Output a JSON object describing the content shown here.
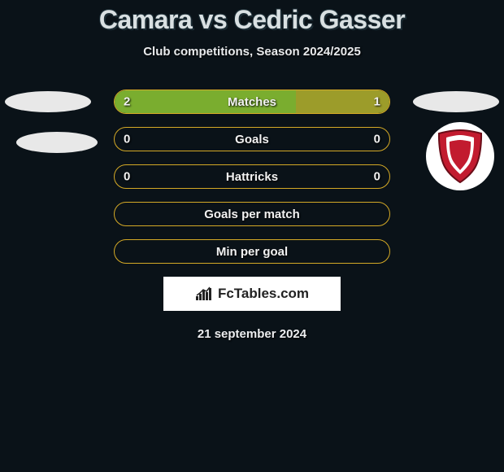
{
  "title": "Camara vs Cedric Gasser",
  "subtitle": "Club competitions, Season 2024/2025",
  "date": "21 september 2024",
  "branding_text": "FcTables.com",
  "colors": {
    "background": "#0a1218",
    "bar_border": "#d4a926",
    "fill_green": "#7aad2f",
    "fill_olive": "#9c9c2a",
    "text": "#f2f2f2",
    "oval_bg": "#e8e8e8",
    "badge_bg": "#ffffff",
    "shield_red": "#c21b2f"
  },
  "rows": [
    {
      "label": "Matches",
      "left_val": "2",
      "right_val": "1",
      "left_pct": 66,
      "right_pct": 34,
      "fill_left": "#7aad2f",
      "fill_right": "#9c9c2a"
    },
    {
      "label": "Goals",
      "left_val": "0",
      "right_val": "0",
      "left_pct": 0,
      "right_pct": 0,
      "fill_left": "#7aad2f",
      "fill_right": "#9c9c2a"
    },
    {
      "label": "Hattricks",
      "left_val": "0",
      "right_val": "0",
      "left_pct": 0,
      "right_pct": 0,
      "fill_left": "#7aad2f",
      "fill_right": "#9c9c2a"
    },
    {
      "label": "Goals per match",
      "left_val": "",
      "right_val": "",
      "left_pct": 0,
      "right_pct": 0,
      "fill_left": "#7aad2f",
      "fill_right": "#9c9c2a"
    },
    {
      "label": "Min per goal",
      "left_val": "",
      "right_val": "",
      "left_pct": 0,
      "right_pct": 0,
      "fill_left": "#7aad2f",
      "fill_right": "#9c9c2a"
    }
  ]
}
